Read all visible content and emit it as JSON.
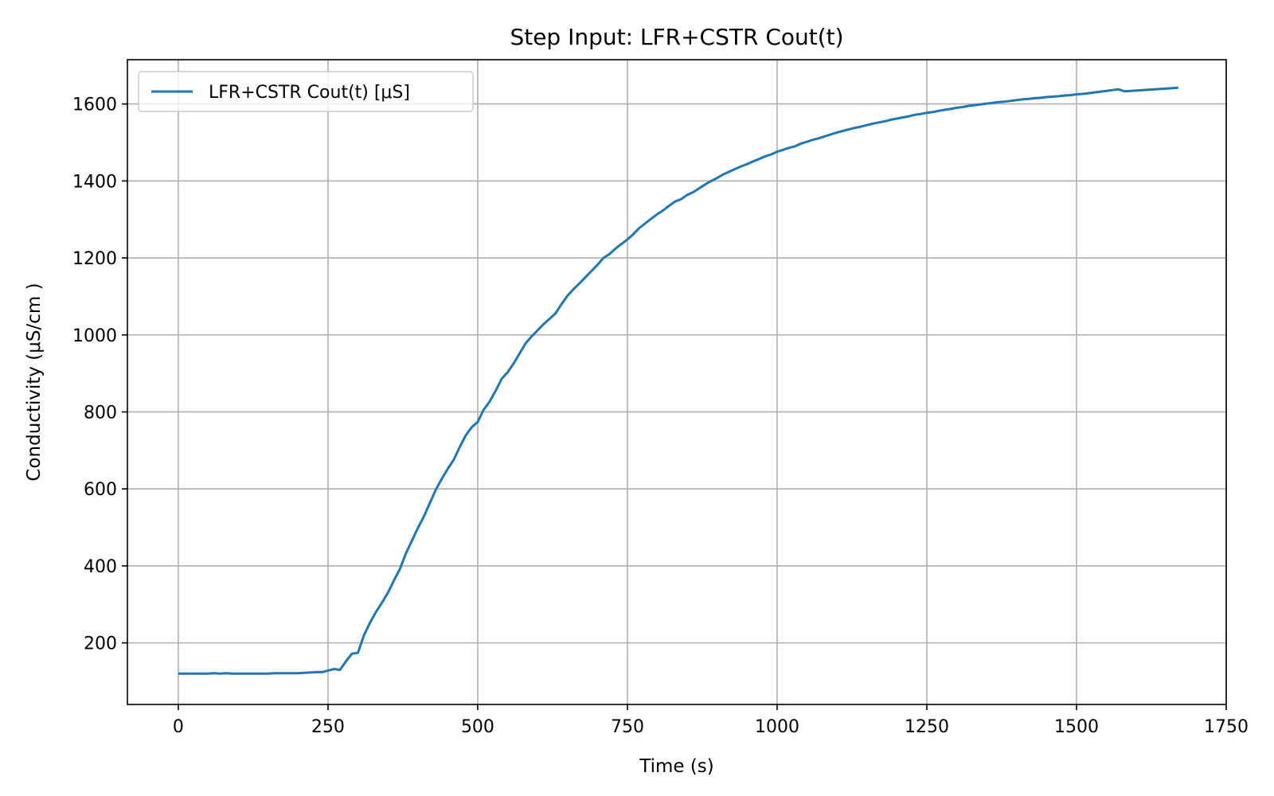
{
  "chart_data": {
    "type": "line",
    "title": "Step Input: LFR+CSTR Cout(t)",
    "xlabel": "Time (s)",
    "ylabel": "Conductivity (μS/cm )",
    "xlim": [
      -85,
      1750
    ],
    "ylim": [
      40,
      1715
    ],
    "xticks": [
      0,
      250,
      500,
      750,
      1000,
      1250,
      1500,
      1750
    ],
    "yticks": [
      200,
      400,
      600,
      800,
      1000,
      1200,
      1400,
      1600
    ],
    "grid": true,
    "legend_position": "top-left",
    "series": [
      {
        "name": "LFR+CSTR Cout(t) [μS]",
        "color": "#1f77b4",
        "x": [
          0,
          10,
          20,
          30,
          40,
          50,
          60,
          70,
          80,
          90,
          100,
          110,
          120,
          130,
          140,
          150,
          160,
          170,
          180,
          190,
          200,
          210,
          220,
          230,
          240,
          250,
          260,
          270,
          280,
          290,
          300,
          310,
          320,
          330,
          340,
          350,
          360,
          370,
          380,
          390,
          400,
          410,
          420,
          430,
          440,
          450,
          460,
          470,
          480,
          490,
          500,
          510,
          520,
          530,
          540,
          550,
          560,
          570,
          580,
          590,
          600,
          610,
          620,
          630,
          640,
          650,
          660,
          670,
          680,
          690,
          700,
          710,
          720,
          730,
          740,
          750,
          760,
          770,
          780,
          790,
          800,
          810,
          820,
          830,
          840,
          850,
          860,
          870,
          880,
          890,
          900,
          910,
          920,
          930,
          940,
          950,
          960,
          970,
          980,
          990,
          1000,
          1010,
          1020,
          1030,
          1040,
          1050,
          1060,
          1070,
          1080,
          1090,
          1100,
          1110,
          1120,
          1130,
          1140,
          1150,
          1160,
          1170,
          1180,
          1190,
          1200,
          1210,
          1220,
          1230,
          1240,
          1250,
          1260,
          1270,
          1280,
          1290,
          1300,
          1310,
          1320,
          1330,
          1340,
          1350,
          1360,
          1370,
          1380,
          1390,
          1400,
          1410,
          1420,
          1430,
          1440,
          1450,
          1460,
          1470,
          1480,
          1490,
          1500,
          1510,
          1520,
          1530,
          1540,
          1550,
          1560,
          1570,
          1580,
          1590,
          1600,
          1610,
          1620,
          1630,
          1640,
          1650,
          1660,
          1670
        ],
        "y": [
          120,
          120,
          120,
          120,
          120,
          120,
          121,
          120,
          121,
          120,
          120,
          120,
          120,
          120,
          120,
          120,
          121,
          121,
          121,
          121,
          121,
          122,
          123,
          124,
          124,
          128,
          132,
          130,
          152,
          172,
          174,
          220,
          252,
          280,
          304,
          330,
          362,
          392,
          432,
          465,
          498,
          528,
          563,
          598,
          626,
          652,
          676,
          709,
          739,
          760,
          774,
          806,
          827,
          855,
          886,
          903,
          926,
          952,
          978,
          996,
          1012,
          1028,
          1042,
          1056,
          1080,
          1102,
          1119,
          1134,
          1150,
          1166,
          1182,
          1200,
          1210,
          1224,
          1236,
          1248,
          1262,
          1278,
          1290,
          1302,
          1314,
          1324,
          1336,
          1347,
          1353,
          1364,
          1371,
          1381,
          1391,
          1400,
          1408,
          1417,
          1424,
          1431,
          1438,
          1444,
          1451,
          1457,
          1464,
          1469,
          1476,
          1481,
          1486,
          1490,
          1497,
          1502,
          1507,
          1511,
          1516,
          1521,
          1526,
          1530,
          1534,
          1538,
          1541,
          1545,
          1549,
          1552,
          1555,
          1559,
          1562,
          1565,
          1568,
          1572,
          1574,
          1577,
          1579,
          1582,
          1585,
          1587,
          1590,
          1592,
          1595,
          1597,
          1599,
          1601,
          1603,
          1605,
          1606,
          1608,
          1610,
          1612,
          1613,
          1615,
          1616,
          1618,
          1619,
          1620,
          1622,
          1623,
          1625,
          1626,
          1628,
          1630,
          1632,
          1634,
          1636,
          1638,
          1633,
          1634,
          1635,
          1636,
          1637,
          1638,
          1639,
          1640,
          1641,
          1642
        ]
      }
    ]
  }
}
